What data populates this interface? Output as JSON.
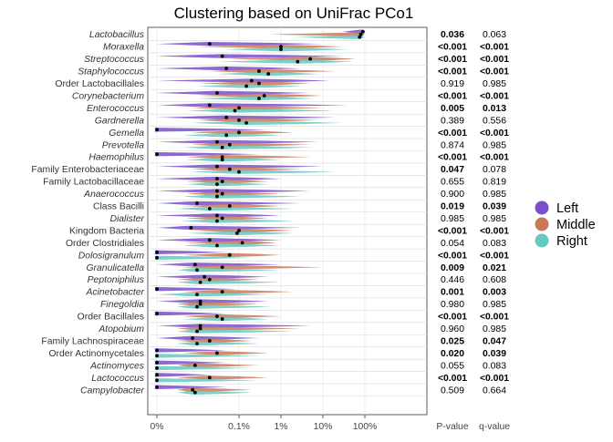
{
  "chart_data": {
    "type": "violin-dot",
    "title": "Clustering based on UniFrac PCo1",
    "x_tick_labels": [
      "0%",
      "0.1%",
      "1%",
      "10%",
      "100%"
    ],
    "x_scale": "log (pseudo, 0% at left)",
    "column_headers": {
      "p": "P-value",
      "q": "q-value"
    },
    "legend": {
      "position": "right",
      "entries": [
        {
          "name": "Left",
          "color": "#7b4fc9"
        },
        {
          "name": "Middle",
          "color": "#c8795a"
        },
        {
          "name": "Right",
          "color": "#66c9c0"
        }
      ]
    },
    "series_colors": {
      "Left": "#7b4fc9",
      "Middle": "#c8795a",
      "Right": "#66c9c0"
    },
    "taxa": [
      {
        "name": "Lactobacillus",
        "italic": true,
        "p": "0.036",
        "p_bold": true,
        "q": "0.063",
        "q_bold": false,
        "medians": [
          90,
          80,
          75
        ],
        "spread": [
          [
            30,
            99
          ],
          [
            0.5,
            99
          ],
          [
            2,
            99
          ]
        ]
      },
      {
        "name": "Moraxella",
        "italic": true,
        "p": "<0.001",
        "p_bold": true,
        "q": "<0.001",
        "q_bold": true,
        "medians": [
          0.02,
          1,
          1
        ],
        "spread": [
          [
            0.0,
            10
          ],
          [
            0.01,
            30
          ],
          [
            0.05,
            40
          ]
        ]
      },
      {
        "name": "Streptococcus",
        "italic": true,
        "p": "<0.001",
        "p_bold": true,
        "q": "<0.001",
        "q_bold": true,
        "medians": [
          0.04,
          5,
          2.5
        ],
        "spread": [
          [
            0.0,
            30
          ],
          [
            0.05,
            60
          ],
          [
            0.03,
            50
          ]
        ]
      },
      {
        "name": "Staphylococcus",
        "italic": true,
        "p": "<0.001",
        "p_bold": true,
        "q": "<0.001",
        "q_bold": true,
        "medians": [
          0.05,
          0.3,
          0.5
        ],
        "spread": [
          [
            0.0,
            3
          ],
          [
            0.02,
            20
          ],
          [
            0.03,
            8
          ]
        ]
      },
      {
        "name": "Order Lactobacillales",
        "italic": false,
        "p": "0.919",
        "p_bold": false,
        "q": "0.985",
        "q_bold": false,
        "medians": [
          0.2,
          0.3,
          0.15
        ],
        "spread": [
          [
            0.0,
            15
          ],
          [
            0.01,
            5
          ],
          [
            0.01,
            3
          ]
        ]
      },
      {
        "name": "Corynebacterium",
        "italic": true,
        "p": "<0.001",
        "p_bold": true,
        "q": "<0.001",
        "q_bold": true,
        "medians": [
          0.03,
          0.4,
          0.3
        ],
        "spread": [
          [
            0.0,
            5
          ],
          [
            0.01,
            10
          ],
          [
            0.01,
            6
          ]
        ]
      },
      {
        "name": "Enterococcus",
        "italic": true,
        "p": "0.005",
        "p_bold": true,
        "q": "0.013",
        "q_bold": true,
        "medians": [
          0.02,
          0.1,
          0.08
        ],
        "spread": [
          [
            0.0,
            40
          ],
          [
            0.005,
            10
          ],
          [
            0.003,
            20
          ]
        ]
      },
      {
        "name": "Gardnerella",
        "italic": true,
        "p": "0.389",
        "p_bold": false,
        "q": "0.556",
        "q_bold": false,
        "medians": [
          0.05,
          0.1,
          0.15
        ],
        "spread": [
          [
            0.0,
            20
          ],
          [
            0.01,
            8
          ],
          [
            0.005,
            30
          ]
        ]
      },
      {
        "name": "Gemella",
        "italic": true,
        "p": "<0.001",
        "p_bold": true,
        "q": "<0.001",
        "q_bold": true,
        "medians": [
          0.0,
          0.1,
          0.05
        ],
        "spread": [
          [
            0.0,
            0.5
          ],
          [
            0.005,
            2
          ],
          [
            0.002,
            1
          ]
        ]
      },
      {
        "name": "Prevotella",
        "italic": true,
        "p": "0.874",
        "p_bold": false,
        "q": "0.985",
        "q_bold": false,
        "medians": [
          0.03,
          0.06,
          0.04
        ],
        "spread": [
          [
            0.0,
            8
          ],
          [
            0.005,
            5
          ],
          [
            0.002,
            6
          ]
        ]
      },
      {
        "name": "Haemophilus",
        "italic": true,
        "p": "<0.001",
        "p_bold": true,
        "q": "<0.001",
        "q_bold": true,
        "medians": [
          0.0,
          0.04,
          0.04
        ],
        "spread": [
          [
            0.0,
            0.3
          ],
          [
            0.003,
            5
          ],
          [
            0.003,
            1
          ]
        ]
      },
      {
        "name": "Family Enterobacteriaceae",
        "italic": false,
        "p": "0.047",
        "p_bold": true,
        "q": "0.078",
        "q_bold": false,
        "medians": [
          0.03,
          0.06,
          0.1
        ],
        "spread": [
          [
            0.0,
            10
          ],
          [
            0.005,
            3
          ],
          [
            0.004,
            20
          ]
        ]
      },
      {
        "name": "Family Lactobacillaceae",
        "italic": false,
        "p": "0.655",
        "p_bold": false,
        "q": "0.819",
        "q_bold": false,
        "medians": [
          0.03,
          0.04,
          0.03
        ],
        "spread": [
          [
            0.0,
            1
          ],
          [
            0.003,
            0.5
          ],
          [
            0.003,
            0.5
          ]
        ]
      },
      {
        "name": "Anaerococcus",
        "italic": true,
        "p": "0.900",
        "p_bold": false,
        "q": "0.985",
        "q_bold": false,
        "medians": [
          0.03,
          0.04,
          0.03
        ],
        "spread": [
          [
            0.0,
            5
          ],
          [
            0.003,
            1
          ],
          [
            0.002,
            3
          ]
        ]
      },
      {
        "name": "Class Bacilli",
        "italic": false,
        "p": "0.019",
        "p_bold": true,
        "q": "0.039",
        "q_bold": true,
        "medians": [
          0.01,
          0.06,
          0.02
        ],
        "spread": [
          [
            0.0,
            3
          ],
          [
            0.002,
            1
          ],
          [
            0.001,
            2
          ]
        ]
      },
      {
        "name": "Dialister",
        "italic": true,
        "p": "0.985",
        "p_bold": false,
        "q": "0.985",
        "q_bold": false,
        "medians": [
          0.03,
          0.04,
          0.03
        ],
        "spread": [
          [
            0.0,
            1
          ],
          [
            0.003,
            0.5
          ],
          [
            0.002,
            2
          ]
        ]
      },
      {
        "name": "Kingdom Bacteria",
        "italic": false,
        "p": "<0.001",
        "p_bold": true,
        "q": "<0.001",
        "q_bold": true,
        "medians": [
          0.005,
          0.1,
          0.09
        ],
        "spread": [
          [
            0.0,
            3
          ],
          [
            0.005,
            2
          ],
          [
            0.003,
            2
          ]
        ]
      },
      {
        "name": "Order Clostridiales",
        "italic": false,
        "p": "0.054",
        "p_bold": false,
        "q": "0.083",
        "q_bold": false,
        "medians": [
          0.02,
          0.12,
          0.03
        ],
        "spread": [
          [
            0.0,
            1
          ],
          [
            0.002,
            0.8
          ],
          [
            0.002,
            1
          ]
        ]
      },
      {
        "name": "Dolosigranulum",
        "italic": true,
        "p": "<0.001",
        "p_bold": true,
        "q": "<0.001",
        "q_bold": true,
        "medians": [
          0.0,
          0.06,
          0.0
        ],
        "spread": [
          [
            0.0,
            0.05
          ],
          [
            0.002,
            1
          ],
          [
            0.0,
            0.2
          ]
        ]
      },
      {
        "name": "Granulicatella",
        "italic": true,
        "p": "0.009",
        "p_bold": true,
        "q": "0.021",
        "q_bold": true,
        "medians": [
          0.008,
          0.04,
          0.01
        ],
        "spread": [
          [
            0.0,
            1
          ],
          [
            0.002,
            10
          ],
          [
            0.001,
            1
          ]
        ]
      },
      {
        "name": "Peptoniphilus",
        "italic": true,
        "p": "0.446",
        "p_bold": false,
        "q": "0.608",
        "q_bold": false,
        "medians": [
          0.015,
          0.02,
          0.012
        ],
        "spread": [
          [
            0.0,
            0.5
          ],
          [
            0.001,
            0.3
          ],
          [
            0.001,
            1
          ]
        ]
      },
      {
        "name": "Acinetobacter",
        "italic": true,
        "p": "0.001",
        "p_bold": true,
        "q": "0.003",
        "q_bold": true,
        "medians": [
          0.0,
          0.04,
          0.01
        ],
        "spread": [
          [
            0.0,
            0.1
          ],
          [
            0.002,
            2
          ],
          [
            0.0,
            0.5
          ]
        ]
      },
      {
        "name": "Finegoldia",
        "italic": true,
        "p": "0.980",
        "p_bold": false,
        "q": "0.985",
        "q_bold": false,
        "medians": [
          0.012,
          0.012,
          0.01
        ],
        "spread": [
          [
            0.0,
            0.5
          ],
          [
            0.001,
            0.3
          ],
          [
            0.001,
            0.6
          ]
        ]
      },
      {
        "name": "Order Bacillales",
        "italic": false,
        "p": "<0.001",
        "p_bold": true,
        "q": "<0.001",
        "q_bold": true,
        "medians": [
          0.0,
          0.03,
          0.04
        ],
        "spread": [
          [
            0.0,
            0.05
          ],
          [
            0.002,
            1
          ],
          [
            0.002,
            0.5
          ]
        ]
      },
      {
        "name": "Atopobium",
        "italic": true,
        "p": "0.960",
        "p_bold": false,
        "q": "0.985",
        "q_bold": false,
        "medians": [
          0.012,
          0.012,
          0.01
        ],
        "spread": [
          [
            0.0,
            5
          ],
          [
            0.001,
            3
          ],
          [
            0.001,
            2
          ]
        ]
      },
      {
        "name": "Family Lachnospiraceae",
        "italic": false,
        "p": "0.025",
        "p_bold": true,
        "q": "0.047",
        "q_bold": true,
        "medians": [
          0.006,
          0.02,
          0.01
        ],
        "spread": [
          [
            0.0,
            0.3
          ],
          [
            0.001,
            0.2
          ],
          [
            0.001,
            0.3
          ]
        ]
      },
      {
        "name": "Order Actinomycetales",
        "italic": false,
        "p": "0.020",
        "p_bold": true,
        "q": "0.039",
        "q_bold": true,
        "medians": [
          0.0,
          0.03,
          0.0
        ],
        "spread": [
          [
            0.0,
            0.05
          ],
          [
            0.002,
            0.5
          ],
          [
            0.0,
            0.3
          ]
        ]
      },
      {
        "name": "Actinomyces",
        "italic": true,
        "p": "0.055",
        "p_bold": false,
        "q": "0.083",
        "q_bold": false,
        "medians": [
          0.0,
          0.008,
          0.0
        ],
        "spread": [
          [
            0.0,
            0.05
          ],
          [
            0.001,
            0.3
          ],
          [
            0.0,
            0.2
          ]
        ]
      },
      {
        "name": "Lactococcus",
        "italic": true,
        "p": "<0.001",
        "p_bold": true,
        "q": "<0.001",
        "q_bold": true,
        "medians": [
          0.0,
          0.02,
          0.0
        ],
        "spread": [
          [
            0.0,
            0.02
          ],
          [
            0.001,
            0.5
          ],
          [
            0.0,
            0.3
          ]
        ]
      },
      {
        "name": "Campylobacter",
        "italic": true,
        "p": "0.509",
        "p_bold": false,
        "q": "0.664",
        "q_bold": false,
        "medians": [
          0.0,
          0.006,
          0.008
        ],
        "spread": [
          [
            0.0,
            0.05
          ],
          [
            0.001,
            0.2
          ],
          [
            0.001,
            0.2
          ]
        ]
      }
    ]
  }
}
